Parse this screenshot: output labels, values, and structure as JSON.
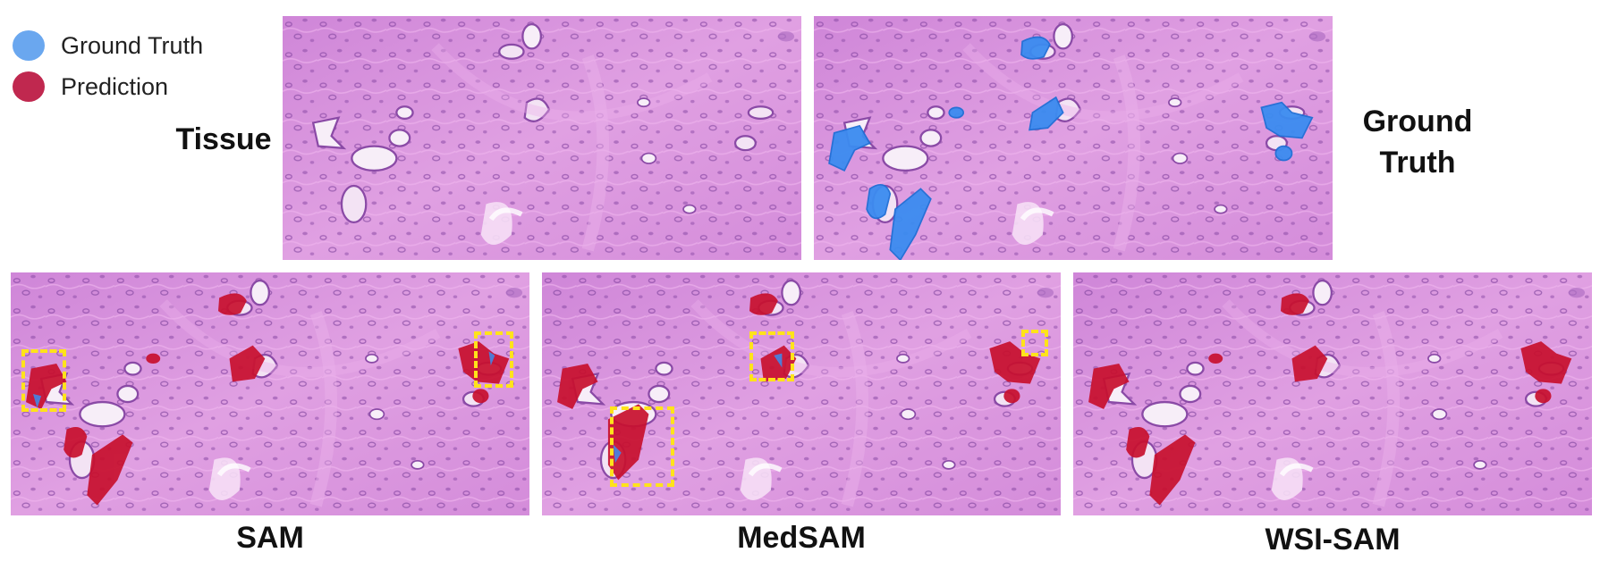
{
  "legend": {
    "items": [
      {
        "label": "Ground Truth",
        "color": "#6aa7ef"
      },
      {
        "label": "Prediction",
        "color": "#c0284f"
      }
    ]
  },
  "labels": {
    "tissue": "Tissue",
    "ground_truth_line1": "Ground",
    "ground_truth_line2": "Truth"
  },
  "captions": {
    "sam": "SAM",
    "medsam": "MedSAM",
    "wsisam": "WSI-SAM"
  },
  "colors": {
    "tissue_bg": "#d58ad9",
    "stroma": "#e6a2e4",
    "nuclei": "#8a4aa6",
    "ground_truth": "#3b8cf0",
    "prediction": "#c8102e",
    "highlight_box": "#ffe31a"
  }
}
